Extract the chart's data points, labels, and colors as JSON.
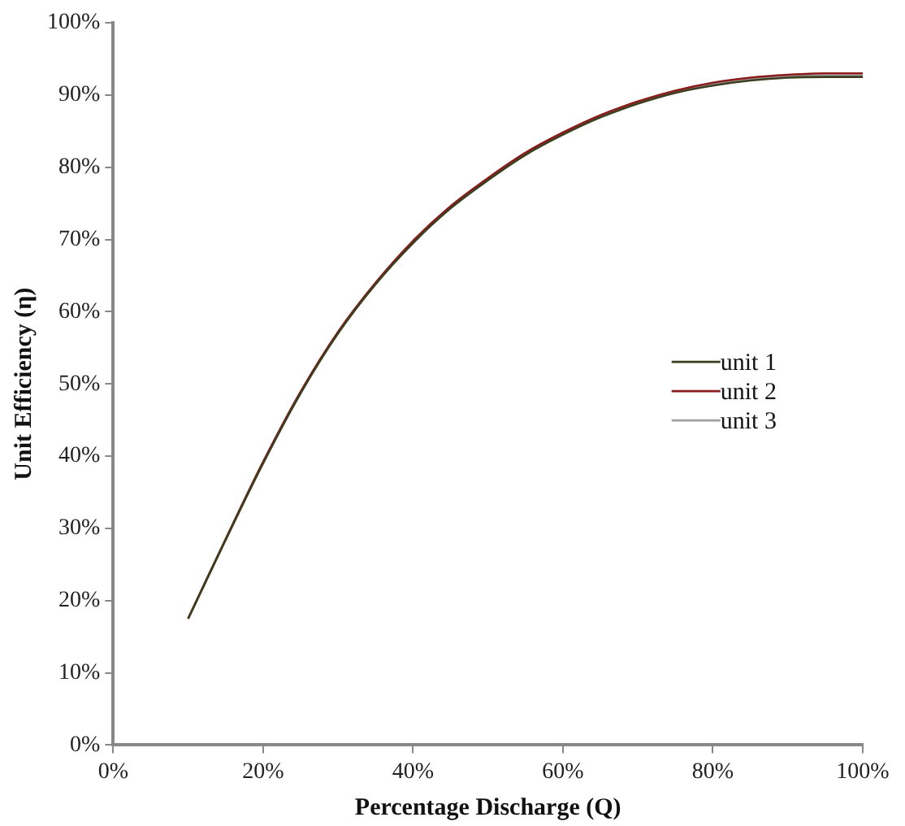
{
  "chart_data": {
    "type": "line",
    "xlabel": "Percentage Discharge (Q)",
    "ylabel": "Unit Efficiency (η)",
    "x": [
      10,
      15,
      20,
      25,
      30,
      35,
      40,
      45,
      50,
      55,
      60,
      65,
      70,
      75,
      80,
      85,
      90,
      95,
      100
    ],
    "series": [
      {
        "name": "unit 1",
        "color": "#3d3d1f",
        "values": [
          17.5,
          28.4,
          39.0,
          48.7,
          57.0,
          63.8,
          69.5,
          74.3,
          78.2,
          81.7,
          84.5,
          86.9,
          88.8,
          90.3,
          91.3,
          92.0,
          92.4,
          92.5,
          92.5
        ]
      },
      {
        "name": "unit 2",
        "color": "#8b1a1a",
        "values": [
          17.5,
          28.5,
          39.2,
          48.9,
          57.2,
          64.0,
          69.8,
          74.6,
          78.5,
          82.0,
          84.8,
          87.2,
          89.1,
          90.6,
          91.7,
          92.4,
          92.8,
          93.0,
          93.0
        ]
      },
      {
        "name": "unit 3",
        "color": "#a0a0a0",
        "values": [
          17.5,
          28.5,
          39.1,
          48.8,
          57.1,
          63.9,
          69.7,
          74.5,
          78.4,
          81.9,
          84.7,
          87.1,
          89.0,
          90.5,
          91.5,
          92.2,
          92.6,
          92.7,
          92.7
        ]
      }
    ],
    "xlim": [
      0,
      100
    ],
    "ylim": [
      0,
      100
    ],
    "xticks": [
      {
        "value": 0,
        "label": "0%"
      },
      {
        "value": 20,
        "label": "20%"
      },
      {
        "value": 40,
        "label": "40%"
      },
      {
        "value": 60,
        "label": "60%"
      },
      {
        "value": 80,
        "label": "80%"
      },
      {
        "value": 100,
        "label": "100%"
      }
    ],
    "yticks": [
      {
        "value": 0,
        "label": "0%"
      },
      {
        "value": 10,
        "label": "10%"
      },
      {
        "value": 20,
        "label": "20%"
      },
      {
        "value": 30,
        "label": "30%"
      },
      {
        "value": 40,
        "label": "40%"
      },
      {
        "value": 50,
        "label": "50%"
      },
      {
        "value": 60,
        "label": "60%"
      },
      {
        "value": 70,
        "label": "70%"
      },
      {
        "value": 80,
        "label": "80%"
      },
      {
        "value": 90,
        "label": "90%"
      },
      {
        "value": 100,
        "label": "100%"
      }
    ],
    "grid": false,
    "legend": "right",
    "marker": "none",
    "line_style": "solid"
  }
}
